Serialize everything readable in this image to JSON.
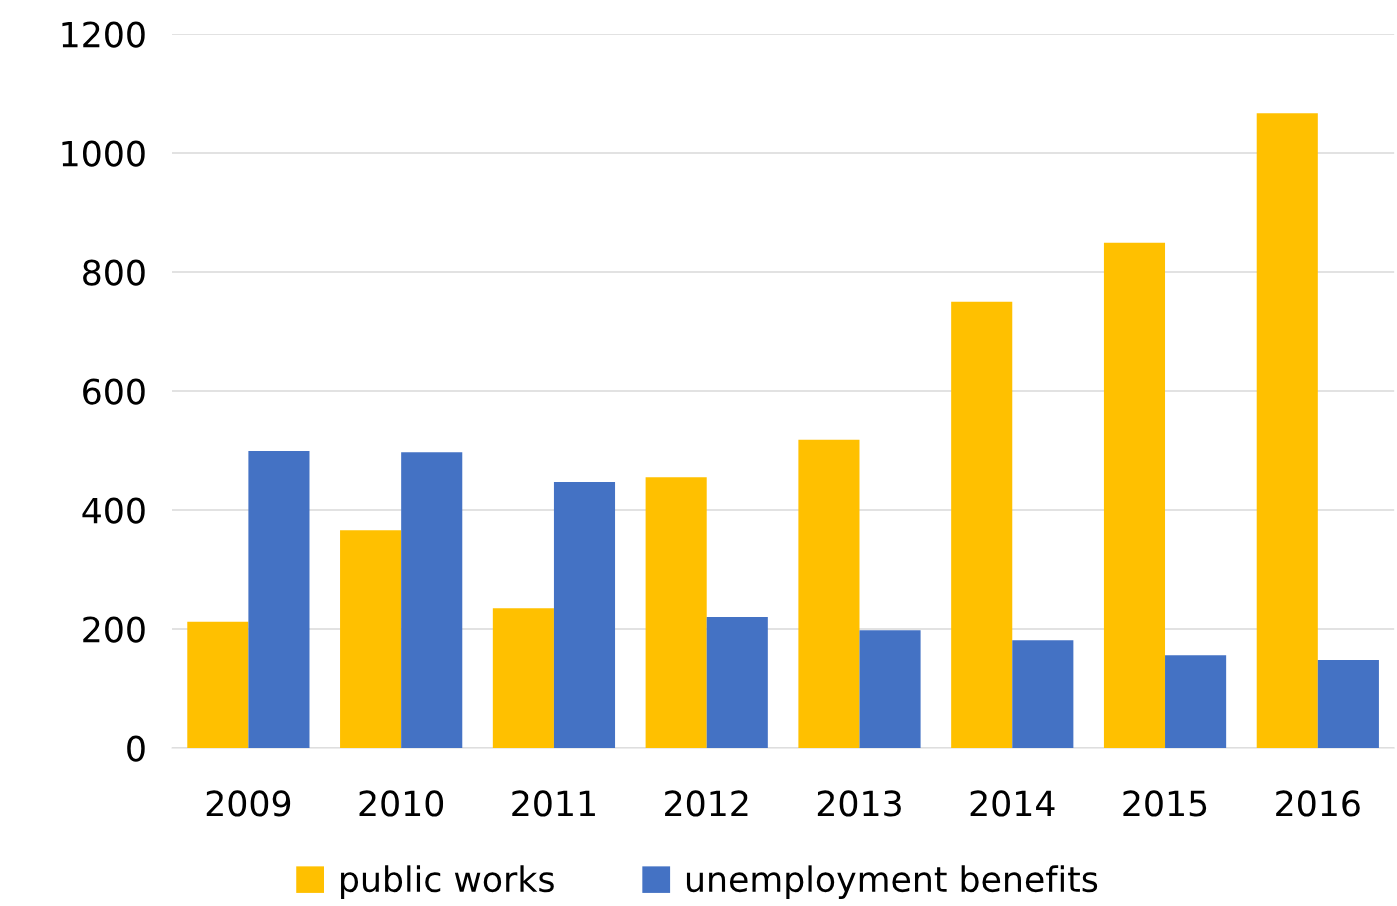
{
  "chart_data": {
    "type": "bar",
    "categories": [
      "2009",
      "2010",
      "2011",
      "2012",
      "2013",
      "2014",
      "2015",
      "2016"
    ],
    "series": [
      {
        "name": "public works",
        "color": "#ffc000",
        "values": [
          212,
          366,
          235,
          455,
          518,
          750,
          849,
          1067
        ]
      },
      {
        "name": "unemployment benefits",
        "color": "#4472c4",
        "values": [
          499,
          497,
          447,
          220,
          198,
          181,
          156,
          148
        ]
      }
    ],
    "ylim": [
      0,
      1200
    ],
    "yticks": [
      0,
      200,
      400,
      600,
      800,
      1000,
      1200
    ],
    "grid": "y",
    "legend": "bottom"
  }
}
